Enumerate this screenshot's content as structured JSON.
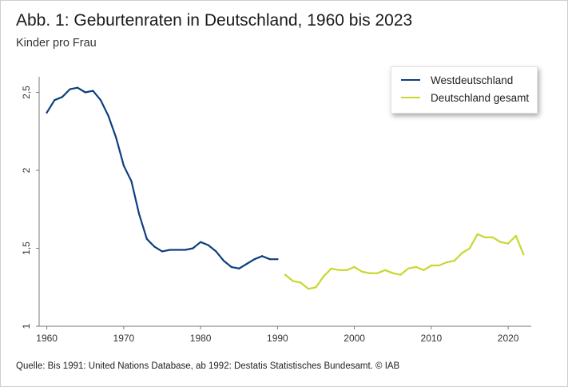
{
  "title": "Abb. 1: Geburtenraten in Deutschland, 1960 bis 2023",
  "subtitle": "Kinder pro Frau",
  "source": "Quelle: Bis 1991: United Nations Database, ab 1992: Destatis Statistisches Bundesamt.    © IAB",
  "chart_data": {
    "type": "line",
    "xlabel": "",
    "ylabel": "",
    "xlim": [
      1959,
      2023
    ],
    "ylim": [
      1,
      2.6
    ],
    "x_ticks": [
      1960,
      1970,
      1980,
      1990,
      2000,
      2010,
      2020
    ],
    "y_ticks": [
      1,
      1.5,
      2,
      2.5
    ],
    "y_tick_labels": [
      "1",
      "1,5",
      "2",
      "2,5"
    ],
    "grid": false,
    "legend_position": "top-right",
    "series": [
      {
        "name": "Westdeutschland",
        "color": "#0d3f7f",
        "x": [
          1960,
          1961,
          1962,
          1963,
          1964,
          1965,
          1966,
          1967,
          1968,
          1969,
          1970,
          1971,
          1972,
          1973,
          1974,
          1975,
          1976,
          1977,
          1978,
          1979,
          1980,
          1981,
          1982,
          1983,
          1984,
          1985,
          1986,
          1987,
          1988,
          1989,
          1990
        ],
        "y": [
          2.37,
          2.45,
          2.47,
          2.52,
          2.53,
          2.5,
          2.51,
          2.45,
          2.35,
          2.21,
          2.03,
          1.93,
          1.72,
          1.56,
          1.51,
          1.48,
          1.49,
          1.49,
          1.49,
          1.5,
          1.54,
          1.52,
          1.48,
          1.42,
          1.38,
          1.37,
          1.4,
          1.43,
          1.45,
          1.43,
          1.43
        ]
      },
      {
        "name": "Deutschland gesamt",
        "color": "#c9d72e",
        "x": [
          1991,
          1992,
          1993,
          1994,
          1995,
          1996,
          1997,
          1998,
          1999,
          2000,
          2001,
          2002,
          2003,
          2004,
          2005,
          2006,
          2007,
          2008,
          2009,
          2010,
          2011,
          2012,
          2013,
          2014,
          2015,
          2016,
          2017,
          2018,
          2019,
          2020,
          2021,
          2022
        ],
        "y": [
          1.33,
          1.29,
          1.28,
          1.24,
          1.25,
          1.32,
          1.37,
          1.36,
          1.36,
          1.38,
          1.35,
          1.34,
          1.34,
          1.36,
          1.34,
          1.33,
          1.37,
          1.38,
          1.36,
          1.39,
          1.39,
          1.41,
          1.42,
          1.47,
          1.5,
          1.59,
          1.57,
          1.57,
          1.54,
          1.53,
          1.58,
          1.46
        ]
      }
    ]
  }
}
